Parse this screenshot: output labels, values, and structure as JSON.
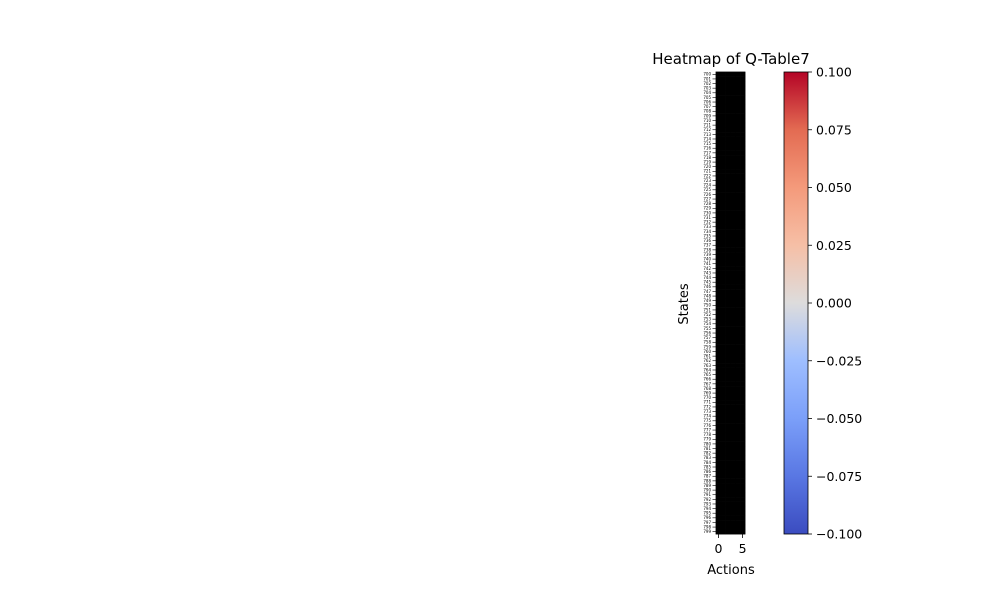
{
  "chart_data": {
    "type": "heatmap",
    "title": "Heatmap of Q-Table7",
    "xlabel": "Actions",
    "ylabel": "States",
    "x_tick_labels": [
      "0",
      "5"
    ],
    "y_tick_labels": [
      "700",
      "701",
      "702",
      "703",
      "704",
      "705",
      "706",
      "707",
      "708",
      "709",
      "710",
      "711",
      "712",
      "713",
      "714",
      "715",
      "716",
      "717",
      "718",
      "719",
      "720",
      "721",
      "722",
      "723",
      "724",
      "725",
      "726",
      "727",
      "728",
      "729",
      "730",
      "731",
      "732",
      "733",
      "734",
      "735",
      "736",
      "737",
      "738",
      "739",
      "740",
      "741",
      "742",
      "743",
      "744",
      "745",
      "746",
      "747",
      "748",
      "749",
      "750",
      "751",
      "752",
      "753",
      "754",
      "755",
      "756",
      "757",
      "758",
      "759",
      "760",
      "761",
      "762",
      "763",
      "764",
      "765",
      "766",
      "767",
      "768",
      "769",
      "770",
      "771",
      "772",
      "773",
      "774",
      "775",
      "776",
      "777",
      "778",
      "779",
      "780",
      "781",
      "782",
      "783",
      "784",
      "785",
      "786",
      "787",
      "788",
      "789",
      "790",
      "791",
      "792",
      "793",
      "794",
      "795",
      "796",
      "797",
      "798",
      "799"
    ],
    "num_actions": 6,
    "cell_value_all": 0,
    "cell_color": "#000000",
    "colormap": "coolwarm",
    "colorbar": {
      "range": [
        -0.1,
        0.1
      ],
      "tick_labels": [
        "0.100",
        "0.075",
        "0.050",
        "0.025",
        "0.000",
        "−0.025",
        "−0.050",
        "−0.075",
        "−0.100"
      ],
      "tick_values": [
        0.1,
        0.075,
        0.05,
        0.025,
        0.0,
        -0.025,
        -0.05,
        -0.075,
        -0.1
      ]
    },
    "grid": false
  }
}
